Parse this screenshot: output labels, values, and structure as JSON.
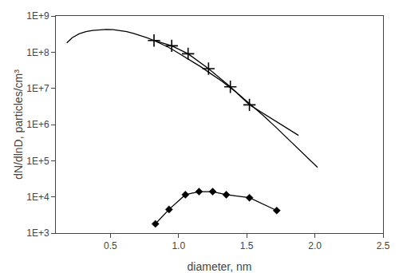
{
  "chart_data": {
    "type": "line",
    "xlabel": "diameter, nm",
    "ylabel": "dN/dlnD, particles/cm³",
    "log": "y",
    "grid": false,
    "xlim": [
      0.1,
      2.5
    ],
    "ylim": [
      1000,
      1000000000
    ],
    "xticks": [
      0.5,
      {
        "value": 1,
        "label": "1.0"
      },
      1.5,
      {
        "value": 2,
        "label": "2.0"
      },
      2.5
    ],
    "yticks": [
      {
        "value": 1000,
        "label": "1E+3"
      },
      {
        "value": 10000,
        "label": "1E+4"
      },
      {
        "value": 100000,
        "label": "1E+5"
      },
      {
        "value": 1000000,
        "label": "1E+6"
      },
      {
        "value": 10000000,
        "label": "1E+7"
      },
      {
        "value": 100000000,
        "label": "1E+8"
      },
      {
        "value": 1000000000,
        "label": "1E+9"
      }
    ],
    "series": [
      {
        "color": "#000000",
        "marker": "none",
        "line_style": "solid",
        "x": [
          0.18,
          0.22,
          0.27,
          0.32,
          0.37,
          0.42,
          0.47,
          0.52,
          0.57,
          0.62,
          0.67,
          0.72,
          0.77,
          0.82,
          0.87,
          0.92,
          0.97,
          1.02,
          1.07,
          1.12,
          1.17,
          1.22,
          1.27,
          1.32,
          1.37,
          1.42,
          1.52,
          1.62,
          1.72,
          1.82,
          1.92,
          2.02
        ],
        "values": [
          180000000.0,
          250000000.0,
          320000000.0,
          370000000.0,
          400000000.0,
          420000000.0,
          425000000.0,
          420000000.0,
          400000000.0,
          370000000.0,
          330000000.0,
          290000000.0,
          250000000.0,
          210000000.0,
          175000000.0,
          140000000.0,
          110000000.0,
          85000000.0,
          65000000.0,
          50000000.0,
          38000000.0,
          28000000.0,
          21000000.0,
          15500000.0,
          11000000.0,
          8000000.0,
          3800000.0,
          1800000.0,
          800000.0,
          350000.0,
          150000.0,
          65000.0
        ]
      },
      {
        "color": "#000000",
        "marker": "none",
        "line_style": "solid",
        "x": [
          0.82,
          0.95,
          1.07,
          1.22,
          1.38,
          1.52,
          1.88
        ],
        "values": [
          210000000.0,
          150000000.0,
          90000000.0,
          35000000.0,
          11000000.0,
          3500000.0,
          500000.0
        ]
      },
      {
        "color": "#000000",
        "marker": "plus",
        "line_style": "none",
        "x": [
          0.82,
          0.95,
          1.07,
          1.22,
          1.38,
          1.52
        ],
        "values": [
          210000000.0,
          150000000.0,
          90000000.0,
          35000000.0,
          11000000.0,
          3500000.0
        ]
      },
      {
        "color": "#000000",
        "marker": "diamond",
        "line_style": "solid",
        "x": [
          0.83,
          0.93,
          1.05,
          1.15,
          1.25,
          1.35,
          1.52,
          1.72
        ],
        "values": [
          1800.0,
          4500.0,
          11500.0,
          14000.0,
          14000.0,
          11500.0,
          9500.0,
          4200.0
        ]
      }
    ]
  }
}
